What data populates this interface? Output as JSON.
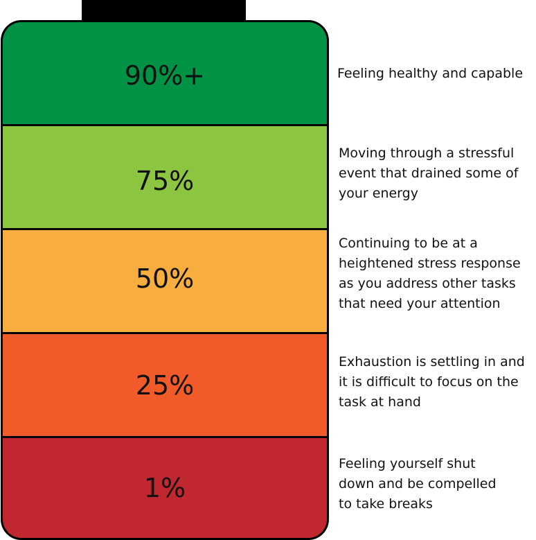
{
  "colors": {
    "outline": "#000000",
    "level_90": "#019245",
    "level_75": "#8cc540",
    "level_50": "#f8ae3f",
    "level_25": "#f05b29",
    "level_1": "#c1272e"
  },
  "levels": [
    {
      "label": "90%+",
      "description": "Feeling healthy and capable"
    },
    {
      "label": "75%",
      "description": "Moving through a stressful\nevent that drained some of\nyour energy"
    },
    {
      "label": "50%",
      "description": "Continuing to be at a\nheightened stress response\nas you address other tasks\nthat need your attention"
    },
    {
      "label": "25%",
      "description": "Exhaustion is settling in and\nit is difficult to focus on the\ntask at hand"
    },
    {
      "label": "1%",
      "description": "Feeling yourself shut\ndown and be compelled\nto take breaks"
    }
  ]
}
